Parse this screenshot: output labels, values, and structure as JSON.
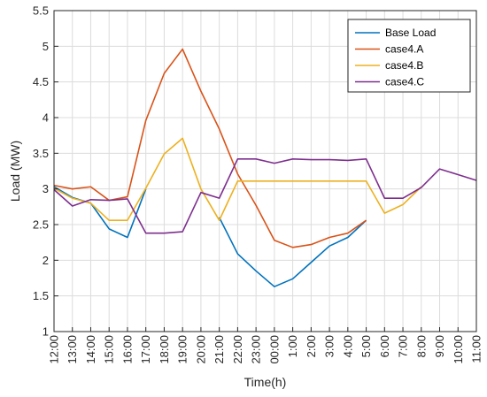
{
  "chart_data": {
    "type": "line",
    "title": "",
    "xlabel": "Time(h)",
    "ylabel": "Load (MW)",
    "ylim": [
      1,
      5.5
    ],
    "yticks": [
      "1",
      "1.5",
      "2",
      "2.5",
      "3",
      "3.5",
      "4",
      "4.5",
      "5",
      "5.5"
    ],
    "grid": true,
    "legend_position": "top-right",
    "categories": [
      "12:00",
      "13:00",
      "14:00",
      "15:00",
      "16:00",
      "17:00",
      "18:00",
      "19:00",
      "20:00",
      "21:00",
      "22:00",
      "23:00",
      "00:00",
      "1:00",
      "2:00",
      "3:00",
      "4:00",
      "5:00",
      "6:00",
      "7:00",
      "8:00",
      "9:00",
      "10:00",
      "11:00"
    ],
    "series": [
      {
        "name": "Base Load",
        "color": "#0072BD",
        "values": [
          3.03,
          2.88,
          2.8,
          2.44,
          2.32,
          3.0,
          null,
          null,
          null,
          2.6,
          2.09,
          1.85,
          1.63,
          1.74,
          1.97,
          2.2,
          2.32,
          2.56,
          null,
          null,
          null,
          null,
          null,
          null
        ]
      },
      {
        "name": "case4.A",
        "color": "#D95319",
        "values": [
          3.05,
          3.0,
          3.03,
          2.84,
          2.89,
          3.96,
          4.62,
          4.96,
          4.37,
          3.84,
          3.21,
          2.77,
          2.28,
          2.18,
          2.22,
          2.32,
          2.38,
          2.56,
          null,
          null,
          null,
          null,
          null,
          null
        ]
      },
      {
        "name": "case4.B",
        "color": "#EDB120",
        "values": [
          3.01,
          2.87,
          2.8,
          2.56,
          2.56,
          3.01,
          3.49,
          3.71,
          3.0,
          2.56,
          3.11,
          3.11,
          3.11,
          3.11,
          3.11,
          3.11,
          3.11,
          3.11,
          2.66,
          2.78,
          3.03,
          null,
          null,
          null
        ]
      },
      {
        "name": "case4.C",
        "color": "#7E2F8E",
        "values": [
          2.99,
          2.76,
          2.85,
          2.84,
          2.86,
          2.38,
          2.38,
          2.4,
          2.95,
          2.87,
          3.42,
          3.42,
          3.36,
          3.42,
          3.41,
          3.41,
          3.4,
          3.42,
          2.87,
          2.87,
          3.02,
          3.28,
          3.2,
          3.12
        ]
      }
    ]
  }
}
